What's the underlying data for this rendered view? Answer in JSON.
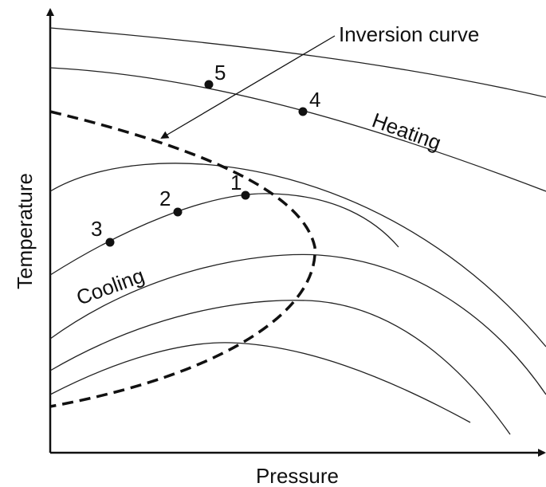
{
  "axes": {
    "x_label": "Pressure",
    "y_label": "Temperature"
  },
  "annotations": {
    "inversion_curve": "Inversion curve",
    "heating": "Heating",
    "cooling": "Cooling"
  },
  "points": [
    {
      "label": "1"
    },
    {
      "label": "2"
    },
    {
      "label": "3"
    },
    {
      "label": "4"
    },
    {
      "label": "5"
    }
  ]
}
